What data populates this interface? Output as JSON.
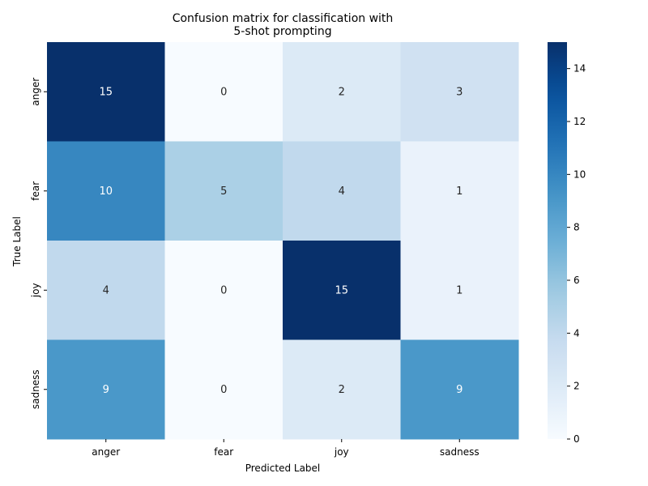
{
  "chart_data": {
    "type": "heatmap",
    "title": "Confusion matrix for classification with\n5-shot prompting",
    "xlabel": "Predicted Label",
    "ylabel": "True Label",
    "x_categories": [
      "anger",
      "fear",
      "joy",
      "sadness"
    ],
    "y_categories": [
      "anger",
      "fear",
      "joy",
      "sadness"
    ],
    "values": [
      [
        15,
        0,
        2,
        3
      ],
      [
        10,
        5,
        4,
        1
      ],
      [
        4,
        0,
        15,
        1
      ],
      [
        9,
        0,
        2,
        9
      ]
    ],
    "colorbar": {
      "range": [
        0,
        15
      ],
      "ticks": [
        0,
        2,
        4,
        6,
        8,
        10,
        12,
        14
      ]
    },
    "colormap": "Blues",
    "grid": false
  }
}
